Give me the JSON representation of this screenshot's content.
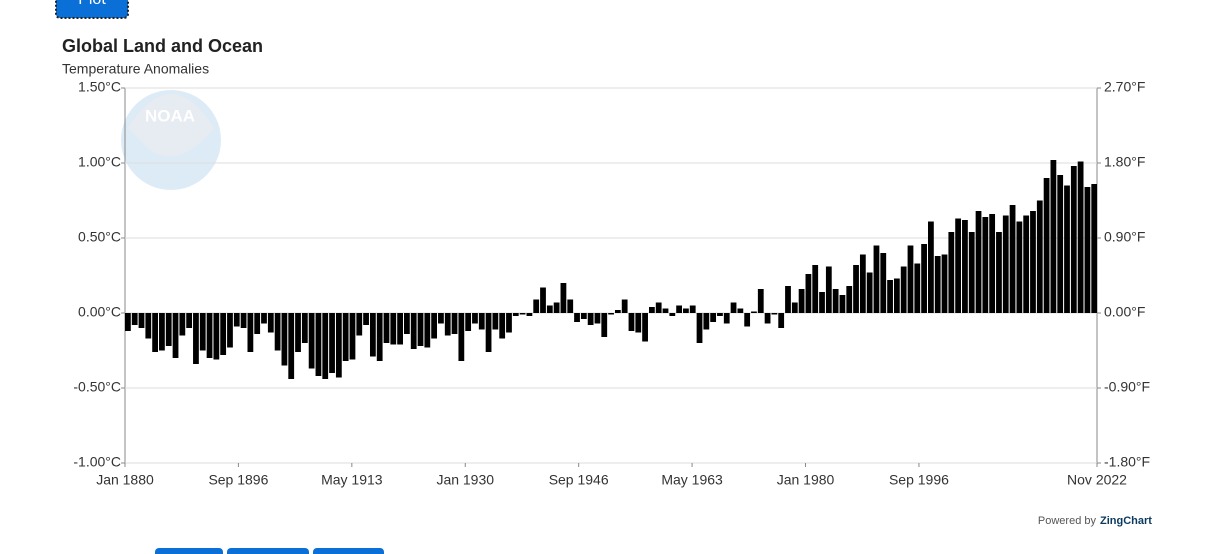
{
  "plot_button": "Plot",
  "logo": "NOAA",
  "credit": {
    "prefix": "Powered by",
    "brand": "ZingChart"
  },
  "chart_data": {
    "type": "bar",
    "title": "Global Land and Ocean",
    "subtitle": "Temperature Anomalies",
    "color": "#000000",
    "grid": true,
    "x": [
      1880,
      1881,
      1882,
      1883,
      1884,
      1885,
      1886,
      1887,
      1888,
      1889,
      1890,
      1891,
      1892,
      1893,
      1894,
      1895,
      1896,
      1897,
      1898,
      1899,
      1900,
      1901,
      1902,
      1903,
      1904,
      1905,
      1906,
      1907,
      1908,
      1909,
      1910,
      1911,
      1912,
      1913,
      1914,
      1915,
      1916,
      1917,
      1918,
      1919,
      1920,
      1921,
      1922,
      1923,
      1924,
      1925,
      1926,
      1927,
      1928,
      1929,
      1930,
      1931,
      1932,
      1933,
      1934,
      1935,
      1936,
      1937,
      1938,
      1939,
      1940,
      1941,
      1942,
      1943,
      1944,
      1945,
      1946,
      1947,
      1948,
      1949,
      1950,
      1951,
      1952,
      1953,
      1954,
      1955,
      1956,
      1957,
      1958,
      1959,
      1960,
      1961,
      1962,
      1963,
      1964,
      1965,
      1966,
      1967,
      1968,
      1969,
      1970,
      1971,
      1972,
      1973,
      1974,
      1975,
      1976,
      1977,
      1978,
      1979,
      1980,
      1981,
      1982,
      1983,
      1984,
      1985,
      1986,
      1987,
      1988,
      1989,
      1990,
      1991,
      1992,
      1993,
      1994,
      1995,
      1996,
      1997,
      1998,
      1999,
      2000,
      2001,
      2002,
      2003,
      2004,
      2005,
      2006,
      2007,
      2008,
      2009,
      2010,
      2011,
      2012,
      2013,
      2014,
      2015,
      2016,
      2017,
      2018,
      2019,
      2020,
      2021,
      2022
    ],
    "values": [
      -0.12,
      -0.08,
      -0.1,
      -0.17,
      -0.26,
      -0.25,
      -0.22,
      -0.3,
      -0.15,
      -0.1,
      -0.34,
      -0.25,
      -0.3,
      -0.31,
      -0.28,
      -0.23,
      -0.09,
      -0.1,
      -0.26,
      -0.14,
      -0.07,
      -0.13,
      -0.25,
      -0.35,
      -0.44,
      -0.26,
      -0.2,
      -0.37,
      -0.42,
      -0.44,
      -0.4,
      -0.43,
      -0.32,
      -0.31,
      -0.15,
      -0.08,
      -0.29,
      -0.32,
      -0.2,
      -0.21,
      -0.21,
      -0.14,
      -0.24,
      -0.22,
      -0.23,
      -0.17,
      -0.07,
      -0.15,
      -0.14,
      -0.32,
      -0.12,
      -0.07,
      -0.11,
      -0.26,
      -0.11,
      -0.17,
      -0.13,
      -0.02,
      -0.01,
      -0.02,
      0.09,
      0.17,
      0.05,
      0.07,
      0.2,
      0.09,
      -0.06,
      -0.04,
      -0.08,
      -0.07,
      -0.16,
      -0.01,
      0.02,
      0.09,
      -0.12,
      -0.13,
      -0.19,
      0.04,
      0.07,
      0.03,
      -0.02,
      0.05,
      0.03,
      0.05,
      -0.2,
      -0.11,
      -0.06,
      -0.02,
      -0.07,
      0.07,
      0.03,
      -0.09,
      0.01,
      0.16,
      -0.07,
      -0.01,
      -0.1,
      0.18,
      0.07,
      0.16,
      0.26,
      0.32,
      0.14,
      0.31,
      0.16,
      0.12,
      0.18,
      0.32,
      0.39,
      0.27,
      0.45,
      0.4,
      0.22,
      0.23,
      0.31,
      0.45,
      0.33,
      0.46,
      0.61,
      0.38,
      0.39,
      0.54,
      0.63,
      0.62,
      0.54,
      0.68,
      0.64,
      0.66,
      0.54,
      0.65,
      0.72,
      0.61,
      0.65,
      0.68,
      0.75,
      0.9,
      1.02,
      0.92,
      0.85,
      0.98,
      1.01,
      0.84,
      0.86
    ],
    "xlim": [
      1880,
      2022.833
    ],
    "xticks": [
      {
        "value": 1880,
        "label": "Jan 1880"
      },
      {
        "value": 1896.667,
        "label": "Sep 1896"
      },
      {
        "value": 1913.333,
        "label": "May 1913"
      },
      {
        "value": 1930,
        "label": "Jan 1930"
      },
      {
        "value": 1946.667,
        "label": "Sep 1946"
      },
      {
        "value": 1963.333,
        "label": "May 1963"
      },
      {
        "value": 1980,
        "label": "Jan 1980"
      },
      {
        "value": 1996.667,
        "label": "Sep 1996"
      },
      {
        "value": 2022.833,
        "label": "Nov 2022"
      }
    ],
    "ylim": [
      -1,
      1.5
    ],
    "yticks": [
      {
        "value": -1,
        "label": "-1.00°C"
      },
      {
        "value": -0.5,
        "label": "-0.50°C"
      },
      {
        "value": 0,
        "label": "0.00°C"
      },
      {
        "value": 0.5,
        "label": "0.50°C"
      },
      {
        "value": 1,
        "label": "1.00°C"
      },
      {
        "value": 1.5,
        "label": "1.50°C"
      }
    ],
    "y2lim": [
      -1.8,
      2.7
    ],
    "y2ticks": [
      {
        "value": -1.8,
        "label": "-1.80°F"
      },
      {
        "value": -0.9,
        "label": "-0.90°F"
      },
      {
        "value": 0,
        "label": "0.00°F"
      },
      {
        "value": 0.9,
        "label": "0.90°F"
      },
      {
        "value": 1.8,
        "label": "1.80°F"
      },
      {
        "value": 2.7,
        "label": "2.70°F"
      }
    ]
  }
}
